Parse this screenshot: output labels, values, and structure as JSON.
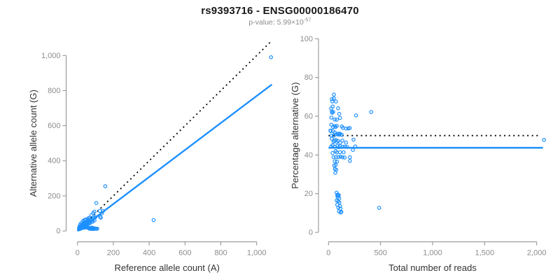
{
  "header": {
    "title": "rs9393716 - ENSG00000186470",
    "pvalue_base": "p-value: 5.99×10",
    "pvalue_exp": "-57"
  },
  "colors": {
    "point": "#1E90FF",
    "fit_line": "#1E90FF",
    "identity_line": "#000000",
    "axis": "#8c8c8c",
    "tick_label": "#8c8c8c",
    "axis_title": "#333333",
    "title": "#1a1a1a",
    "subtitle": "#8c8c8c"
  },
  "chart_data": [
    {
      "type": "scatter",
      "panel": "left",
      "xlabel": "Reference allele count (A)",
      "ylabel": "Alternative allele count (G)",
      "xticks": [
        0,
        200,
        400,
        600,
        800,
        1000
      ],
      "yticks": [
        0,
        200,
        400,
        600,
        800,
        1000
      ],
      "xtick_labels": [
        "0",
        "200",
        "400",
        "600",
        "800",
        "1,000"
      ],
      "ytick_labels": [
        "0",
        "200",
        "400",
        "600",
        "800",
        "1,000"
      ],
      "xlim": [
        0,
        1100
      ],
      "ylim": [
        0,
        1100
      ],
      "grid": false,
      "lines": [
        {
          "name": "identity-line",
          "style": "dotted",
          "color": "#000000",
          "x1": 0,
          "y1": 0,
          "x2": 1085,
          "y2": 1085
        },
        {
          "name": "fit-line",
          "style": "solid",
          "color": "#1E90FF",
          "x1": 0,
          "y1": 0,
          "x2": 1085,
          "y2": 835
        }
      ],
      "points": [
        [
          62,
          16
        ],
        [
          70,
          17
        ],
        [
          75,
          18
        ],
        [
          68,
          16
        ],
        [
          80,
          19
        ],
        [
          73,
          16
        ],
        [
          85,
          18
        ],
        [
          66,
          13
        ],
        [
          78,
          15
        ],
        [
          88,
          16
        ],
        [
          72,
          12
        ],
        [
          95,
          15
        ],
        [
          82,
          12
        ],
        [
          100,
          14
        ],
        [
          90,
          11
        ],
        [
          105,
          12
        ],
        [
          110,
          13
        ],
        [
          425,
          62
        ],
        [
          1080,
          990
        ],
        [
          105,
          160
        ],
        [
          155,
          255
        ],
        [
          15,
          37
        ],
        [
          16,
          36
        ],
        [
          10,
          22
        ],
        [
          23,
          48
        ],
        [
          12,
          25
        ],
        [
          33,
          59
        ],
        [
          14,
          26
        ],
        [
          9,
          16
        ],
        [
          12,
          20
        ],
        [
          17,
          28
        ],
        [
          13,
          21
        ],
        [
          40,
          63
        ],
        [
          11,
          16
        ],
        [
          45,
          65
        ],
        [
          25,
          35
        ],
        [
          33,
          46
        ],
        [
          12,
          15
        ],
        [
          27,
          33
        ],
        [
          36,
          44
        ],
        [
          58,
          70
        ],
        [
          64,
          75
        ],
        [
          78,
          90
        ],
        [
          88,
          102
        ],
        [
          94,
          110
        ],
        [
          20,
          24
        ],
        [
          31,
          37
        ],
        [
          10,
          11
        ],
        [
          20,
          22
        ],
        [
          30,
          32
        ],
        [
          48,
          50
        ],
        [
          55,
          57
        ],
        [
          14,
          14
        ],
        [
          25,
          25
        ],
        [
          35,
          36
        ],
        [
          44,
          45
        ],
        [
          9,
          10
        ],
        [
          52,
          53
        ],
        [
          63,
          64
        ],
        [
          26,
          23
        ],
        [
          42,
          37
        ],
        [
          60,
          52
        ],
        [
          90,
          78
        ],
        [
          125,
          115
        ],
        [
          30,
          27
        ],
        [
          48,
          43
        ],
        [
          70,
          63
        ],
        [
          16,
          15
        ],
        [
          36,
          33
        ],
        [
          15,
          12
        ],
        [
          34,
          27
        ],
        [
          56,
          44
        ],
        [
          77,
          61
        ],
        [
          100,
          79
        ],
        [
          143,
          114
        ],
        [
          22,
          18
        ],
        [
          62,
          50
        ],
        [
          88,
          70
        ],
        [
          47,
          38
        ],
        [
          23,
          16
        ],
        [
          40,
          29
        ],
        [
          65,
          46
        ],
        [
          85,
          60
        ],
        [
          47,
          33
        ],
        [
          135,
          100
        ],
        [
          30,
          19
        ],
        [
          44,
          28
        ],
        [
          58,
          37
        ],
        [
          70,
          45
        ],
        [
          82,
          52
        ],
        [
          95,
          60
        ],
        [
          126,
          80
        ],
        [
          38,
          22
        ],
        [
          52,
          30
        ],
        [
          130,
          76
        ],
        [
          36,
          19
        ],
        [
          45,
          24
        ],
        [
          41,
          20
        ],
        [
          50,
          24
        ],
        [
          45,
          20
        ]
      ]
    },
    {
      "type": "scatter",
      "panel": "right",
      "xlabel": "Total number of reads",
      "ylabel": "Percentage alternative (G)",
      "xticks": [
        0,
        500,
        1000,
        1500,
        2000
      ],
      "yticks": [
        0,
        20,
        40,
        60,
        80,
        100
      ],
      "xtick_labels": [
        "0",
        "500",
        "1,000",
        "1,500",
        "2,000"
      ],
      "ytick_labels": [
        "0",
        "20",
        "40",
        "60",
        "80",
        "100"
      ],
      "xlim": [
        0,
        2100
      ],
      "ylim": [
        0,
        100
      ],
      "grid": false,
      "lines": [
        {
          "name": "expected-50pct-line",
          "style": "dotted",
          "color": "#000000",
          "x1": 0,
          "y1": 50,
          "x2": 2020,
          "y2": 50
        },
        {
          "name": "observed-mean-line",
          "style": "solid",
          "color": "#1E90FF",
          "x1": 0,
          "y1": 43.7,
          "x2": 2060,
          "y2": 43.7
        }
      ],
      "points": [
        [
          78,
          20.5
        ],
        [
          87,
          19.5
        ],
        [
          93,
          19.4
        ],
        [
          84,
          19
        ],
        [
          99,
          19.2
        ],
        [
          89,
          18
        ],
        [
          103,
          17.5
        ],
        [
          79,
          16.5
        ],
        [
          93,
          16.1
        ],
        [
          104,
          15.4
        ],
        [
          84,
          14.3
        ],
        [
          110,
          13.6
        ],
        [
          94,
          12.8
        ],
        [
          114,
          12.3
        ],
        [
          101,
          10.9
        ],
        [
          117,
          10.3
        ],
        [
          123,
          10.6
        ],
        [
          487,
          12.7
        ],
        [
          2070,
          47.8
        ],
        [
          265,
          60.4
        ],
        [
          410,
          62.2
        ],
        [
          52,
          71.2
        ],
        [
          52,
          69.2
        ],
        [
          32,
          68.8
        ],
        [
          71,
          67.6
        ],
        [
          37,
          67.6
        ],
        [
          92,
          64.1
        ],
        [
          40,
          65
        ],
        [
          25,
          64
        ],
        [
          32,
          62.5
        ],
        [
          45,
          62.2
        ],
        [
          34,
          61.8
        ],
        [
          103,
          61.2
        ],
        [
          27,
          59.3
        ],
        [
          110,
          59.1
        ],
        [
          60,
          58.3
        ],
        [
          79,
          58.2
        ],
        [
          27,
          55.6
        ],
        [
          60,
          55
        ],
        [
          80,
          55
        ],
        [
          128,
          54.7
        ],
        [
          139,
          54
        ],
        [
          168,
          53.6
        ],
        [
          190,
          53.7
        ],
        [
          204,
          53.9
        ],
        [
          44,
          54.5
        ],
        [
          68,
          54.4
        ],
        [
          21,
          52.4
        ],
        [
          42,
          52.4
        ],
        [
          62,
          51.6
        ],
        [
          98,
          51
        ],
        [
          112,
          50.9
        ],
        [
          28,
          50
        ],
        [
          50,
          50
        ],
        [
          71,
          50.7
        ],
        [
          89,
          50.6
        ],
        [
          19,
          52.6
        ],
        [
          105,
          50.5
        ],
        [
          127,
          50.4
        ],
        [
          49,
          46.9
        ],
        [
          79,
          46.8
        ],
        [
          112,
          46.4
        ],
        [
          168,
          46.4
        ],
        [
          240,
          47.9
        ],
        [
          57,
          47.4
        ],
        [
          91,
          47.3
        ],
        [
          133,
          47.4
        ],
        [
          31,
          48.4
        ],
        [
          69,
          47.8
        ],
        [
          27,
          44.4
        ],
        [
          61,
          44.3
        ],
        [
          100,
          44
        ],
        [
          138,
          44.2
        ],
        [
          179,
          44.1
        ],
        [
          257,
          44.4
        ],
        [
          40,
          45
        ],
        [
          112,
          44.6
        ],
        [
          158,
          44.3
        ],
        [
          85,
          44.7
        ],
        [
          39,
          41
        ],
        [
          69,
          42
        ],
        [
          111,
          41.4
        ],
        [
          145,
          41.4
        ],
        [
          80,
          41.3
        ],
        [
          235,
          42.6
        ],
        [
          49,
          38.8
        ],
        [
          72,
          38.9
        ],
        [
          95,
          38.9
        ],
        [
          115,
          39.1
        ],
        [
          134,
          38.8
        ],
        [
          155,
          38.7
        ],
        [
          206,
          38.8
        ],
        [
          60,
          36.7
        ],
        [
          82,
          36.6
        ],
        [
          206,
          36.9
        ],
        [
          55,
          34.5
        ],
        [
          69,
          34.8
        ],
        [
          61,
          32.8
        ],
        [
          74,
          32.4
        ],
        [
          65,
          30.8
        ]
      ]
    }
  ]
}
